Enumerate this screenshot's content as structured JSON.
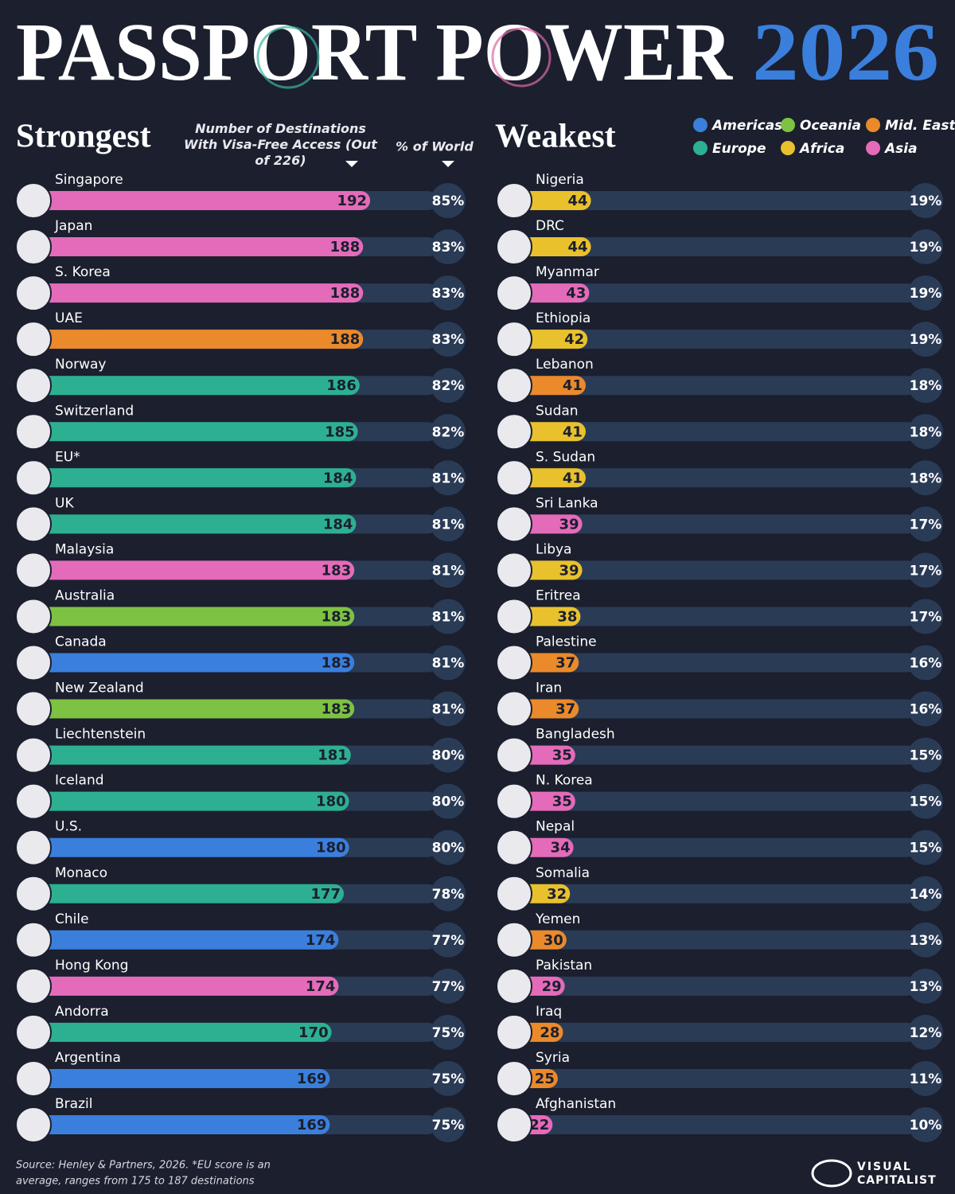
{
  "header": {
    "title": "PASSPORT POWER",
    "year": "2026"
  },
  "legend": [
    {
      "name": "Americas",
      "color": "#3b7fdc"
    },
    {
      "name": "Oceania",
      "color": "#7dc242"
    },
    {
      "name": "Mid. East",
      "color": "#ea8a2b"
    },
    {
      "name": "Europe",
      "color": "#2db092"
    },
    {
      "name": "Africa",
      "color": "#e9c12d"
    },
    {
      "name": "Asia",
      "color": "#e46bb9"
    }
  ],
  "chart_data": [
    {
      "type": "bar",
      "title": "Strongest",
      "value_axis_label": "Number of Destinations With Visa-Free Access (Out of 226)",
      "percent_label": "% of World",
      "xlim": [
        0,
        226
      ],
      "categories": [
        "Singapore",
        "Japan",
        "S. Korea",
        "UAE",
        "Norway",
        "Switzerland",
        "EU*",
        "UK",
        "Malaysia",
        "Australia",
        "Canada",
        "New Zealand",
        "Liechtenstein",
        "Iceland",
        "U.S.",
        "Monaco",
        "Chile",
        "Hong Kong",
        "Andorra",
        "Argentina",
        "Brazil"
      ],
      "values": [
        192,
        188,
        188,
        188,
        186,
        185,
        184,
        184,
        183,
        183,
        183,
        183,
        181,
        180,
        180,
        177,
        174,
        174,
        170,
        169,
        169
      ],
      "regions": [
        "Asia",
        "Asia",
        "Asia",
        "Mid. East",
        "Europe",
        "Europe",
        "Europe",
        "Europe",
        "Asia",
        "Oceania",
        "Americas",
        "Oceania",
        "Europe",
        "Europe",
        "Americas",
        "Europe",
        "Americas",
        "Asia",
        "Europe",
        "Americas",
        "Americas"
      ],
      "percent_of_world": {
        "values": [
          85,
          83,
          83,
          83,
          82,
          82,
          81,
          81,
          81,
          81,
          81,
          81,
          80,
          80,
          80,
          78,
          77,
          77,
          75,
          75,
          75
        ],
        "value_labels": [
          "85%",
          "83%",
          "83%",
          "83%",
          "82%",
          "82%",
          "81%",
          "81%",
          "81%",
          "81%",
          "81%",
          "81%",
          "80%",
          "80%",
          "80%",
          "78%",
          "77%",
          "77%",
          "75%",
          "75%",
          "75%"
        ]
      }
    },
    {
      "type": "bar",
      "title": "Weakest",
      "xlim": [
        0,
        226
      ],
      "categories": [
        "Nigeria",
        "DRC",
        "Myanmar",
        "Ethiopia",
        "Lebanon",
        "Sudan",
        "S. Sudan",
        "Sri Lanka",
        "Libya",
        "Eritrea",
        "Palestine",
        "Iran",
        "Bangladesh",
        "N. Korea",
        "Nepal",
        "Somalia",
        "Yemen",
        "Pakistan",
        "Iraq",
        "Syria",
        "Afghanistan"
      ],
      "values": [
        44,
        44,
        43,
        42,
        41,
        41,
        41,
        39,
        39,
        38,
        37,
        37,
        35,
        35,
        34,
        32,
        30,
        29,
        28,
        25,
        22
      ],
      "regions": [
        "Africa",
        "Africa",
        "Asia",
        "Africa",
        "Mid. East",
        "Africa",
        "Africa",
        "Asia",
        "Africa",
        "Africa",
        "Mid. East",
        "Mid. East",
        "Asia",
        "Asia",
        "Asia",
        "Africa",
        "Mid. East",
        "Asia",
        "Mid. East",
        "Mid. East",
        "Asia"
      ],
      "percent_of_world": {
        "values": [
          19,
          19,
          19,
          19,
          18,
          18,
          18,
          17,
          17,
          17,
          16,
          16,
          15,
          15,
          15,
          14,
          13,
          13,
          12,
          11,
          10
        ],
        "value_labels": [
          "19%",
          "19%",
          "19%",
          "19%",
          "18%",
          "18%",
          "18%",
          "17%",
          "17%",
          "17%",
          "16%",
          "16%",
          "15%",
          "15%",
          "15%",
          "14%",
          "13%",
          "13%",
          "12%",
          "11%",
          "10%"
        ]
      }
    }
  ],
  "source": [
    "Source: Henley & Partners, 2026. *EU score is an",
    "average, ranges from 175 to 187 destinations"
  ],
  "logo": [
    "VISUAL",
    "CAPITALIST"
  ]
}
